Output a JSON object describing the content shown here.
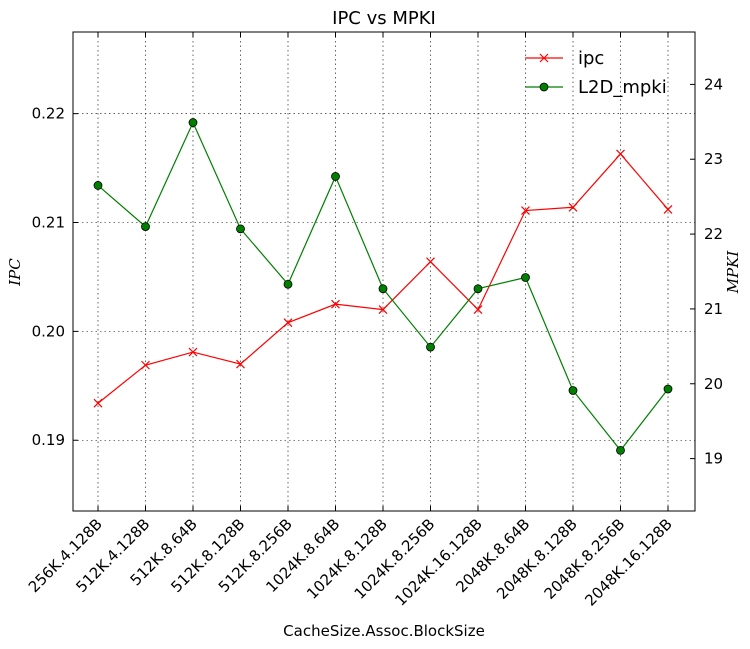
{
  "chart_data": {
    "type": "line",
    "title": "IPC vs MPKI",
    "xlabel": "CacheSize.Assoc.BlockSize",
    "ylabel": "IPC",
    "ylabel_right": "MPKI",
    "categories": [
      "256K.4.128B",
      "512K.4.128B",
      "512K.8.64B",
      "512K.8.128B",
      "512K.8.256B",
      "1024K.8.64B",
      "1024K.8.128B",
      "1024K.8.256B",
      "1024K.16.128B",
      "2048K.8.64B",
      "2048K.8.128B",
      "2048K.8.256B",
      "2048K.16.128B"
    ],
    "ylim": [
      0.1835,
      0.2275
    ],
    "yticks": [
      0.19,
      0.2,
      0.21,
      0.22
    ],
    "ylim_right": [
      18.3,
      24.7
    ],
    "yticks_right": [
      19,
      20,
      21,
      22,
      23,
      24
    ],
    "grid": true,
    "legend_position": "top-right",
    "series": [
      {
        "name": "ipc",
        "axis": "left",
        "color": "#ff0000",
        "marker": "x",
        "values": [
          0.1934,
          0.1969,
          0.1981,
          0.197,
          0.2008,
          0.2025,
          0.202,
          0.2064,
          0.202,
          0.2111,
          0.2114,
          0.2163,
          0.2112
        ]
      },
      {
        "name": "L2D_mpki",
        "axis": "right",
        "color": "#007f00",
        "marker": "o",
        "values": [
          22.65,
          22.1,
          23.49,
          22.07,
          21.33,
          22.77,
          21.27,
          20.49,
          21.27,
          21.42,
          19.91,
          19.11,
          19.93
        ]
      }
    ]
  }
}
